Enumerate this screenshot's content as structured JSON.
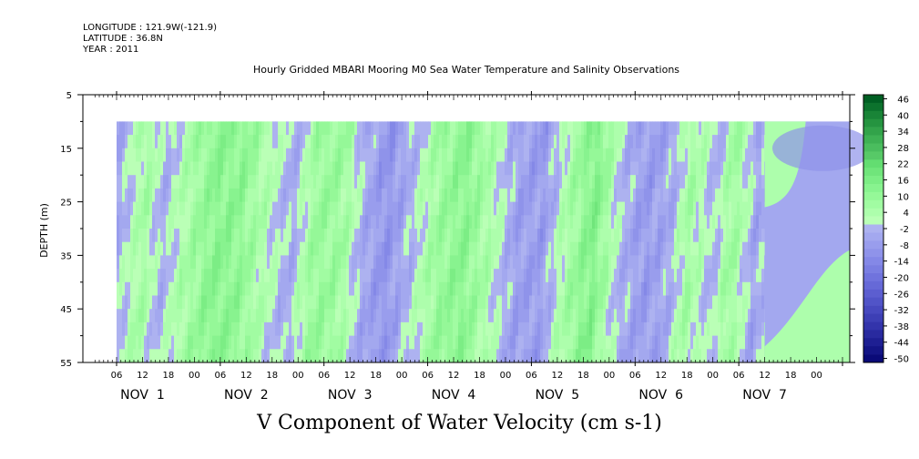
{
  "header": {
    "longitude": "LONGITUDE : 121.9W(-121.9)",
    "latitude": "LATITUDE : 36.8N",
    "year": "YEAR : 2011"
  },
  "chart_data": {
    "type": "heatmap",
    "title": "Hourly Gridded MBARI Mooring M0 Sea Water Temperature and Salinity Observations",
    "subtitle": "V Component of Water Velocity (cm s-1)",
    "ylabel": "DEPTH (m)",
    "ylim": [
      55,
      5
    ],
    "y_ticks": [
      5,
      15,
      25,
      35,
      45,
      55
    ],
    "x_hour_labels": [
      "06",
      "12",
      "18",
      "00",
      "06",
      "12",
      "18",
      "00",
      "06",
      "12",
      "18",
      "00",
      "06",
      "12",
      "18",
      "00",
      "06",
      "12",
      "18",
      "00",
      "06",
      "12",
      "18",
      "00",
      "06",
      "12",
      "18",
      "00"
    ],
    "x_day_labels": [
      "NOV  1",
      "NOV  2",
      "NOV  3",
      "NOV  4",
      "NOV  5",
      "NOV  6",
      "NOV  7"
    ],
    "data_depth_range_m": [
      10,
      55
    ],
    "colorbar": {
      "labels": [
        "46",
        "40",
        "34",
        "28",
        "22",
        "16",
        "10",
        "4",
        "-2",
        "-8",
        "-14",
        "-20",
        "-26",
        "-32",
        "-38",
        "-44",
        "-50"
      ],
      "levels": [
        46,
        43,
        40,
        37,
        34,
        31,
        28,
        25,
        22,
        19,
        16,
        13,
        10,
        7,
        4,
        1,
        -2,
        -5,
        -8,
        -11,
        -14,
        -17,
        -20,
        -23,
        -26,
        -29,
        -32,
        -35,
        -38,
        -41,
        -44,
        -47,
        -50
      ]
    },
    "bands_by_hour": {
      "hours": [
        0,
        6,
        10,
        16,
        22,
        28,
        34,
        40,
        46,
        52,
        56,
        62,
        68,
        74,
        80,
        86,
        92,
        98,
        104,
        110,
        116,
        122,
        128,
        132,
        138,
        142,
        148,
        152,
        158,
        164,
        170
      ],
      "values": [
        -4,
        6,
        -3,
        5,
        12,
        11,
        3,
        -4,
        9,
        7,
        -3,
        -10,
        -2,
        8,
        12,
        4,
        -6,
        -8,
        5,
        14,
        -2,
        -8,
        -4,
        6,
        -3,
        8,
        -6,
        3,
        -4,
        -3,
        -7
      ]
    },
    "late_period": {
      "start_hour": 150,
      "upper_value": -4,
      "lower_value": 3
    }
  }
}
